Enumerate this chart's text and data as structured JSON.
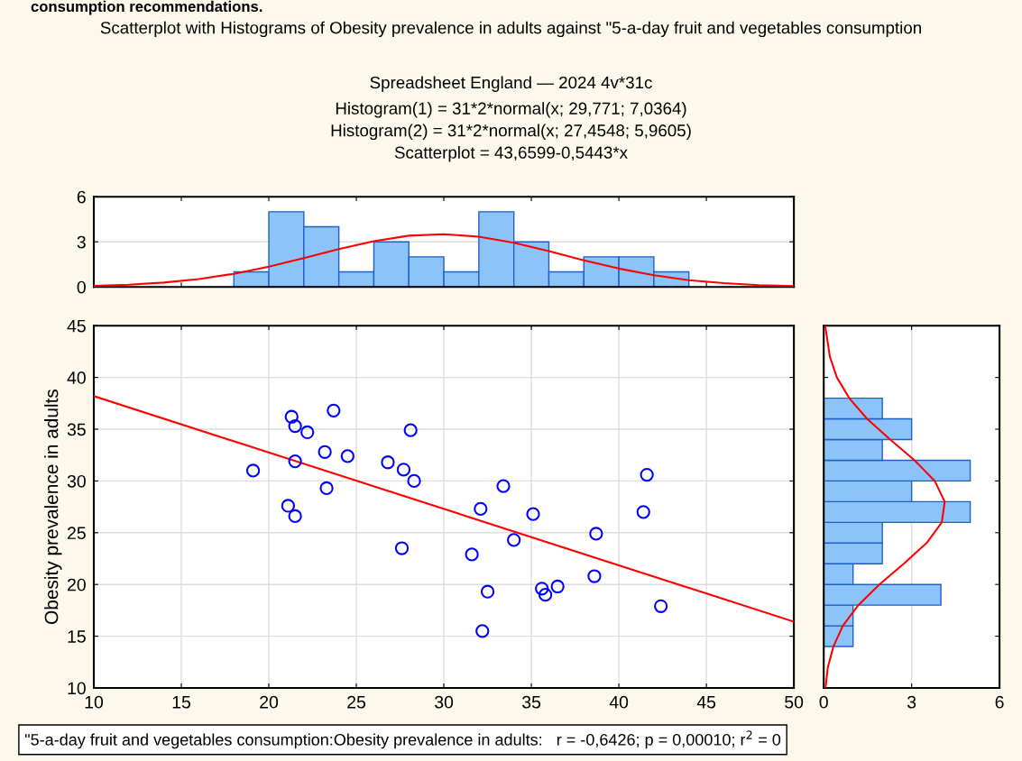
{
  "chart_data": [
    {
      "type": "histogram",
      "title": "Scatterplot with Histograms of Obesity prevalence in adults against \"5-a-day fruit and vegetables consumption",
      "subtitle": "Spreadsheet England — 2024 4v*31c",
      "annotations": [
        "consumption recommendations.",
        "Histogram(1) = 31*2*normal(x; 29,771; 7,0364)",
        "Histogram(2) = 31*2*normal(x; 27,4548; 5,9605)",
        "Scatterplot = 43,6599-0,5443*x"
      ],
      "series": [
        {
          "bins": [
            18,
            20,
            22,
            24,
            26,
            28,
            30,
            32,
            34,
            36,
            38,
            40,
            42,
            44
          ],
          "values": [
            1,
            5,
            4,
            1,
            3,
            2,
            1,
            5,
            3,
            1,
            2,
            2,
            1
          ],
          "color": "#8cc4fa"
        },
        {
          "type": "line",
          "x": [
            10,
            12,
            14,
            16,
            18,
            20,
            22,
            24,
            26,
            28,
            30,
            32,
            34,
            36,
            38,
            40,
            42,
            44,
            46,
            48,
            50
          ],
          "values": [
            0.07,
            0.15,
            0.29,
            0.52,
            0.87,
            1.34,
            1.91,
            2.51,
            3.04,
            3.41,
            3.51,
            3.34,
            2.93,
            2.38,
            1.77,
            1.22,
            0.78,
            0.45,
            0.25,
            0.12,
            0.06
          ],
          "color": "#ff0000"
        }
      ],
      "xlim": [
        10,
        50
      ],
      "ylim": [
        0,
        6
      ],
      "yticks": [
        0,
        3,
        6
      ],
      "tick_labels": "y",
      "grid": "y"
    },
    {
      "type": "scatter",
      "ylabel": "Obesity prevalence in adults",
      "annotations": [
        "\"5-a-day fruit and vegetables consumption:Obesity prevalence in adults:   r = -0,6426; p = 0,00010; r$^{2}$ = 0"
      ],
      "series": [
        {
          "marker": "circle",
          "color": "#0000ff",
          "x": [
            19.1,
            21.3,
            21.5,
            22.2,
            23.7,
            21.5,
            23.2,
            24.5,
            23.3,
            21.1,
            21.5,
            26.8,
            28.1,
            27.7,
            28.3,
            27.6,
            33.4,
            32.1,
            35.1,
            34.0,
            31.6,
            32.5,
            32.2,
            35.6,
            35.8,
            36.5,
            38.7,
            38.6,
            41.6,
            41.4,
            42.4
          ],
          "values": [
            31.0,
            36.2,
            35.3,
            34.7,
            36.8,
            31.9,
            32.8,
            32.4,
            29.3,
            27.6,
            26.6,
            31.8,
            34.9,
            31.1,
            30.0,
            23.5,
            29.5,
            27.3,
            26.8,
            24.3,
            22.9,
            19.3,
            15.5,
            19.6,
            19.0,
            19.8,
            24.9,
            20.8,
            30.6,
            27.0,
            17.9
          ]
        },
        {
          "type": "line",
          "color": "#ff0000",
          "x": [
            10,
            50
          ],
          "values": [
            38.2,
            16.4
          ]
        }
      ],
      "xlim": [
        10,
        50
      ],
      "xticks": [
        10,
        15,
        20,
        25,
        30,
        35,
        40,
        45,
        50
      ],
      "ylim": [
        10,
        45
      ],
      "yticks": [
        10,
        15,
        20,
        25,
        30,
        35,
        40,
        45
      ],
      "grid": true
    },
    {
      "type": "histogram",
      "orientation": "horizontal",
      "series": [
        {
          "bins": [
            14,
            16,
            18,
            20,
            22,
            24,
            26,
            28,
            30,
            32,
            34,
            36,
            38
          ],
          "values": [
            1,
            1,
            4,
            1,
            2,
            2,
            5,
            3,
            5,
            2,
            3,
            2
          ],
          "color": "#8cc4fa"
        },
        {
          "type": "line",
          "x": [
            10,
            12,
            14,
            16,
            18,
            20,
            22,
            24,
            26,
            28,
            30,
            32,
            34,
            36,
            38,
            40,
            42,
            45
          ],
          "values": [
            0.06,
            0.14,
            0.33,
            0.65,
            1.18,
            1.9,
            2.73,
            3.51,
            4.03,
            4.13,
            3.79,
            3.1,
            2.27,
            1.48,
            0.87,
            0.45,
            0.21,
            0.05
          ],
          "color": "#ff0000"
        }
      ],
      "xlim": [
        0,
        6
      ],
      "xticks": [
        0,
        3,
        6
      ],
      "ylim": [
        10,
        45
      ],
      "tick_labels": "x",
      "grid": "x"
    }
  ]
}
